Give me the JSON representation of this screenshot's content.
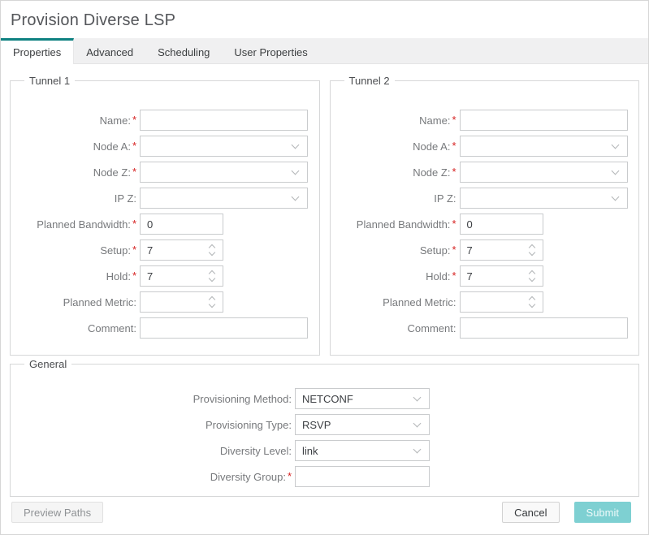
{
  "dialog": {
    "title": "Provision Diverse LSP"
  },
  "colors": {
    "accent": "#0e8181",
    "submit_bg": "#7ed0d2",
    "required": "#d62020"
  },
  "required_marker": "*",
  "tabs": [
    {
      "label": "Properties",
      "active": true
    },
    {
      "label": "Advanced",
      "active": false
    },
    {
      "label": "Scheduling",
      "active": false
    },
    {
      "label": "User Properties",
      "active": false
    }
  ],
  "groups": [
    {
      "legend": "Tunnel 1",
      "fields": [
        {
          "label": "Name:",
          "required": true,
          "type": "text",
          "size": "std",
          "value": ""
        },
        {
          "label": "Node A:",
          "required": true,
          "type": "select",
          "size": "std",
          "value": ""
        },
        {
          "label": "Node Z:",
          "required": true,
          "type": "select",
          "size": "std",
          "value": ""
        },
        {
          "label": "IP Z:",
          "required": false,
          "type": "select",
          "size": "std",
          "value": ""
        },
        {
          "label": "Planned Bandwidth:",
          "required": true,
          "type": "text",
          "size": "short",
          "value": "0"
        },
        {
          "label": "Setup:",
          "required": true,
          "type": "spinner",
          "size": "short",
          "value": "7"
        },
        {
          "label": "Hold:",
          "required": true,
          "type": "spinner",
          "size": "short",
          "value": "7"
        },
        {
          "label": "Planned Metric:",
          "required": false,
          "type": "spinner",
          "size": "short",
          "value": ""
        },
        {
          "label": "Comment:",
          "required": false,
          "type": "text",
          "size": "std",
          "value": ""
        }
      ]
    },
    {
      "legend": "Tunnel 2",
      "fields": [
        {
          "label": "Name:",
          "required": true,
          "type": "text",
          "size": "std",
          "value": ""
        },
        {
          "label": "Node A:",
          "required": true,
          "type": "select",
          "size": "std",
          "value": ""
        },
        {
          "label": "Node Z:",
          "required": true,
          "type": "select",
          "size": "std",
          "value": ""
        },
        {
          "label": "IP Z:",
          "required": false,
          "type": "select",
          "size": "std",
          "value": ""
        },
        {
          "label": "Planned Bandwidth:",
          "required": true,
          "type": "text",
          "size": "short",
          "value": "0"
        },
        {
          "label": "Setup:",
          "required": true,
          "type": "spinner",
          "size": "short",
          "value": "7"
        },
        {
          "label": "Hold:",
          "required": true,
          "type": "spinner",
          "size": "short",
          "value": "7"
        },
        {
          "label": "Planned Metric:",
          "required": false,
          "type": "spinner",
          "size": "short",
          "value": ""
        },
        {
          "label": "Comment:",
          "required": false,
          "type": "text",
          "size": "std",
          "value": ""
        }
      ]
    },
    {
      "legend": "General",
      "fields": [
        {
          "label": "Provisioning Method:",
          "required": false,
          "type": "select",
          "size": "gen",
          "value": "NETCONF"
        },
        {
          "label": "Provisioning Type:",
          "required": false,
          "type": "select",
          "size": "gen",
          "value": "RSVP"
        },
        {
          "label": "Diversity Level:",
          "required": false,
          "type": "select",
          "size": "gen",
          "value": "link"
        },
        {
          "label": "Diversity Group:",
          "required": true,
          "type": "text",
          "size": "gen",
          "value": ""
        }
      ]
    }
  ],
  "footer": {
    "preview_label": "Preview Paths",
    "cancel_label": "Cancel",
    "submit_label": "Submit"
  }
}
